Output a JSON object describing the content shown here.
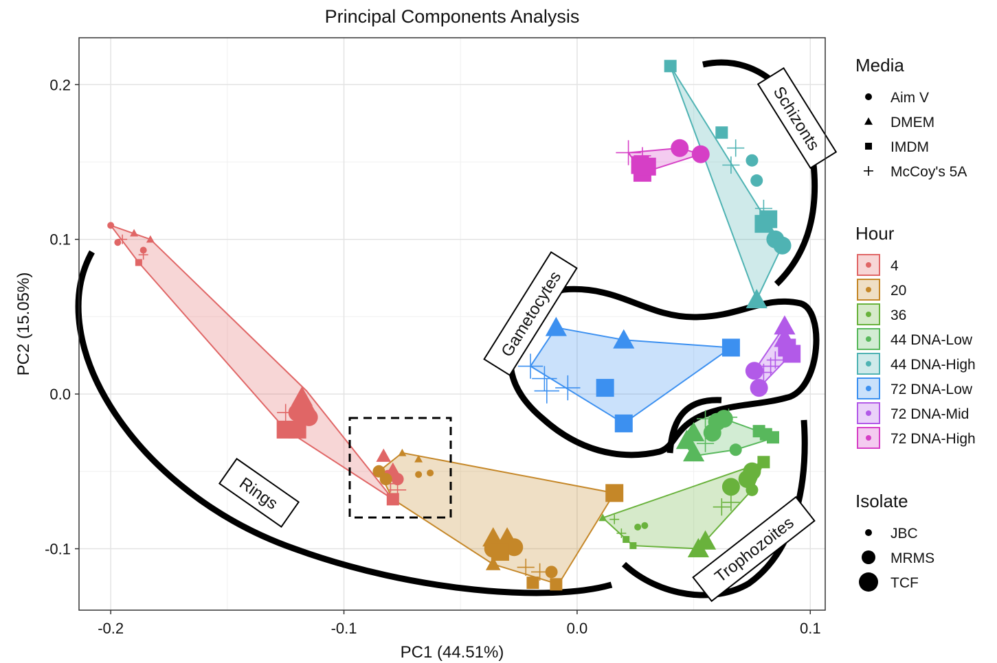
{
  "chart_data": {
    "type": "scatter",
    "title": "Principal Components Analysis",
    "xlabel": "PC1 (44.51%)",
    "ylabel": "PC2 (15.05%)",
    "xlim": [
      -0.2136,
      0.1064
    ],
    "ylim": [
      -0.1397,
      0.2303
    ],
    "x_ticks": [
      -0.2,
      -0.1,
      0.0,
      0.1
    ],
    "x_tick_labels": [
      "-0.2",
      "-0.1",
      "0.0",
      "0.1"
    ],
    "y_ticks": [
      -0.1,
      0.0,
      0.1,
      0.2
    ],
    "y_tick_labels": [
      "-0.1",
      "0.0",
      "0.1",
      "0.2"
    ],
    "grid": true,
    "legend_position": "right",
    "media_legend": {
      "title": "Media",
      "items": [
        {
          "label": "Aim V",
          "shape": "circle"
        },
        {
          "label": "DMEM",
          "shape": "triangle"
        },
        {
          "label": "IMDM",
          "shape": "square"
        },
        {
          "label": "McCoy's 5A",
          "shape": "plus"
        }
      ]
    },
    "hour_legend": {
      "title": "Hour",
      "items": [
        {
          "label": "4",
          "color": "#e06666"
        },
        {
          "label": "20",
          "color": "#c58728"
        },
        {
          "label": "36",
          "color": "#69b23c"
        },
        {
          "label": "44 DNA-Low",
          "color": "#58b85c"
        },
        {
          "label": "44 DNA-High",
          "color": "#4fb3b3"
        },
        {
          "label": "72 DNA-Low",
          "color": "#3c90f0"
        },
        {
          "label": "72 DNA-Mid",
          "color": "#b25ae8"
        },
        {
          "label": "72 DNA-High",
          "color": "#d63fc6"
        }
      ]
    },
    "isolate_legend": {
      "title": "Isolate",
      "items": [
        {
          "label": "JBC",
          "size": "small"
        },
        {
          "label": "MRMS",
          "size": "medium"
        },
        {
          "label": "TCF",
          "size": "large"
        }
      ]
    },
    "annotations": [
      "Schizonts",
      "Gametocytes",
      "Rings",
      "Trophozoites"
    ],
    "series": [
      {
        "color": "#e06666",
        "hull": [
          [
            -0.2,
            0.109
          ],
          [
            -0.183,
            0.1
          ],
          [
            -0.116,
            0.002
          ],
          [
            -0.079,
            -0.068
          ],
          [
            -0.125,
            -0.023
          ],
          [
            -0.188,
            0.085
          ]
        ],
        "points": [
          {
            "x": -0.2,
            "y": 0.109,
            "shape": "circle",
            "size": "small"
          },
          {
            "x": -0.19,
            "y": 0.104,
            "shape": "triangle",
            "size": "small"
          },
          {
            "x": -0.183,
            "y": 0.1,
            "shape": "triangle",
            "size": "small"
          },
          {
            "x": -0.197,
            "y": 0.098,
            "shape": "circle",
            "size": "small"
          },
          {
            "x": -0.195,
            "y": 0.1,
            "shape": "plus",
            "size": "small"
          },
          {
            "x": -0.186,
            "y": 0.093,
            "shape": "circle",
            "size": "small"
          },
          {
            "x": -0.188,
            "y": 0.085,
            "shape": "square",
            "size": "small"
          },
          {
            "x": -0.186,
            "y": 0.09,
            "shape": "plus",
            "size": "small"
          },
          {
            "x": -0.118,
            "y": -0.002,
            "shape": "triangle",
            "size": "large"
          },
          {
            "x": -0.116,
            "y": -0.008,
            "shape": "triangle",
            "size": "large"
          },
          {
            "x": -0.12,
            "y": -0.012,
            "shape": "circle",
            "size": "large"
          },
          {
            "x": -0.115,
            "y": -0.015,
            "shape": "circle",
            "size": "large"
          },
          {
            "x": -0.125,
            "y": -0.023,
            "shape": "square",
            "size": "large"
          },
          {
            "x": -0.12,
            "y": -0.023,
            "shape": "square",
            "size": "large"
          },
          {
            "x": -0.125,
            "y": -0.012,
            "shape": "plus",
            "size": "medium"
          },
          {
            "x": -0.121,
            "y": -0.018,
            "shape": "plus",
            "size": "medium"
          },
          {
            "x": -0.083,
            "y": -0.04,
            "shape": "triangle",
            "size": "medium"
          },
          {
            "x": -0.079,
            "y": -0.049,
            "shape": "triangle",
            "size": "medium"
          },
          {
            "x": -0.081,
            "y": -0.053,
            "shape": "circle",
            "size": "medium"
          },
          {
            "x": -0.077,
            "y": -0.055,
            "shape": "circle",
            "size": "medium"
          },
          {
            "x": -0.079,
            "y": -0.068,
            "shape": "square",
            "size": "medium"
          },
          {
            "x": -0.077,
            "y": -0.062,
            "shape": "plus",
            "size": "medium"
          },
          {
            "x": -0.08,
            "y": -0.058,
            "shape": "plus",
            "size": "medium"
          }
        ]
      },
      {
        "color": "#c58728",
        "hull": [
          [
            -0.085,
            -0.05
          ],
          [
            -0.075,
            -0.038
          ],
          [
            0.016,
            -0.064
          ],
          [
            -0.008,
            -0.123
          ],
          [
            -0.036,
            -0.11
          ],
          [
            -0.079,
            -0.068
          ]
        ],
        "points": [
          {
            "x": -0.085,
            "y": -0.05,
            "shape": "circle",
            "size": "medium"
          },
          {
            "x": -0.075,
            "y": -0.038,
            "shape": "triangle",
            "size": "small"
          },
          {
            "x": -0.068,
            "y": -0.042,
            "shape": "triangle",
            "size": "small"
          },
          {
            "x": -0.068,
            "y": -0.052,
            "shape": "circle",
            "size": "small"
          },
          {
            "x": -0.063,
            "y": -0.051,
            "shape": "circle",
            "size": "small"
          },
          {
            "x": -0.082,
            "y": -0.055,
            "shape": "circle",
            "size": "medium"
          },
          {
            "x": 0.016,
            "y": -0.064,
            "shape": "square",
            "size": "large"
          },
          {
            "x": -0.036,
            "y": -0.093,
            "shape": "triangle",
            "size": "large"
          },
          {
            "x": -0.03,
            "y": -0.093,
            "shape": "triangle",
            "size": "large"
          },
          {
            "x": -0.036,
            "y": -0.1,
            "shape": "circle",
            "size": "large"
          },
          {
            "x": -0.027,
            "y": -0.099,
            "shape": "circle",
            "size": "large"
          },
          {
            "x": -0.033,
            "y": -0.102,
            "shape": "square",
            "size": "large"
          },
          {
            "x": -0.036,
            "y": -0.11,
            "shape": "triangle",
            "size": "medium"
          },
          {
            "x": -0.016,
            "y": -0.115,
            "shape": "plus",
            "size": "medium"
          },
          {
            "x": -0.011,
            "y": -0.115,
            "shape": "circle",
            "size": "medium"
          },
          {
            "x": -0.019,
            "y": -0.122,
            "shape": "square",
            "size": "medium"
          },
          {
            "x": -0.009,
            "y": -0.123,
            "shape": "square",
            "size": "medium"
          },
          {
            "x": -0.022,
            "y": -0.112,
            "shape": "plus",
            "size": "medium"
          }
        ]
      },
      {
        "color": "#69b23c",
        "hull": [
          [
            0.011,
            -0.08
          ],
          [
            0.08,
            -0.044
          ],
          [
            0.075,
            -0.062
          ],
          [
            0.052,
            -0.1
          ],
          [
            0.024,
            -0.098
          ]
        ],
        "points": [
          {
            "x": 0.011,
            "y": -0.08,
            "shape": "triangle",
            "size": "small"
          },
          {
            "x": 0.016,
            "y": -0.081,
            "shape": "plus",
            "size": "small"
          },
          {
            "x": 0.019,
            "y": -0.09,
            "shape": "plus",
            "size": "small"
          },
          {
            "x": 0.024,
            "y": -0.098,
            "shape": "square",
            "size": "small"
          },
          {
            "x": 0.021,
            "y": -0.094,
            "shape": "square",
            "size": "small"
          },
          {
            "x": 0.026,
            "y": -0.086,
            "shape": "circle",
            "size": "small"
          },
          {
            "x": 0.029,
            "y": -0.085,
            "shape": "circle",
            "size": "small"
          },
          {
            "x": 0.052,
            "y": -0.1,
            "shape": "triangle",
            "size": "large"
          },
          {
            "x": 0.055,
            "y": -0.095,
            "shape": "triangle",
            "size": "large"
          },
          {
            "x": 0.075,
            "y": -0.05,
            "shape": "circle",
            "size": "large"
          },
          {
            "x": 0.08,
            "y": -0.044,
            "shape": "square",
            "size": "medium"
          },
          {
            "x": 0.073,
            "y": -0.055,
            "shape": "circle",
            "size": "large"
          },
          {
            "x": 0.066,
            "y": -0.06,
            "shape": "circle",
            "size": "large"
          },
          {
            "x": 0.075,
            "y": -0.062,
            "shape": "circle",
            "size": "medium"
          },
          {
            "x": 0.062,
            "y": -0.073,
            "shape": "plus",
            "size": "medium"
          },
          {
            "x": 0.066,
            "y": -0.07,
            "shape": "plus",
            "size": "medium"
          }
        ]
      },
      {
        "color": "#58b85c",
        "hull": [
          [
            0.052,
            -0.014
          ],
          [
            0.063,
            -0.016
          ],
          [
            0.085,
            -0.028
          ],
          [
            0.068,
            -0.036
          ],
          [
            0.05,
            -0.04
          ],
          [
            0.045,
            -0.03
          ]
        ],
        "points": [
          {
            "x": 0.06,
            "y": -0.018,
            "shape": "circle",
            "size": "large"
          },
          {
            "x": 0.063,
            "y": -0.016,
            "shape": "circle",
            "size": "large"
          },
          {
            "x": 0.055,
            "y": -0.016,
            "shape": "plus",
            "size": "medium"
          },
          {
            "x": 0.065,
            "y": -0.015,
            "shape": "plus",
            "size": "medium"
          },
          {
            "x": 0.05,
            "y": -0.025,
            "shape": "triangle",
            "size": "large"
          },
          {
            "x": 0.047,
            "y": -0.03,
            "shape": "triangle",
            "size": "large"
          },
          {
            "x": 0.05,
            "y": -0.038,
            "shape": "triangle",
            "size": "large"
          },
          {
            "x": 0.058,
            "y": -0.025,
            "shape": "circle",
            "size": "large"
          },
          {
            "x": 0.068,
            "y": -0.036,
            "shape": "circle",
            "size": "medium"
          },
          {
            "x": 0.084,
            "y": -0.028,
            "shape": "square",
            "size": "medium"
          },
          {
            "x": 0.078,
            "y": -0.024,
            "shape": "square",
            "size": "medium"
          },
          {
            "x": 0.081,
            "y": -0.026,
            "shape": "square",
            "size": "medium"
          },
          {
            "x": 0.055,
            "y": -0.032,
            "shape": "plus",
            "size": "medium"
          }
        ]
      },
      {
        "color": "#4fb3b3",
        "hull": [
          [
            0.04,
            0.212
          ],
          [
            0.088,
            0.096
          ],
          [
            0.077,
            0.061
          ]
        ],
        "points": [
          {
            "x": 0.04,
            "y": 0.212,
            "shape": "square",
            "size": "medium"
          },
          {
            "x": 0.062,
            "y": 0.169,
            "shape": "square",
            "size": "medium"
          },
          {
            "x": 0.068,
            "y": 0.159,
            "shape": "plus",
            "size": "medium"
          },
          {
            "x": 0.066,
            "y": 0.148,
            "shape": "plus",
            "size": "medium"
          },
          {
            "x": 0.075,
            "y": 0.151,
            "shape": "circle",
            "size": "medium"
          },
          {
            "x": 0.077,
            "y": 0.138,
            "shape": "circle",
            "size": "medium"
          },
          {
            "x": 0.08,
            "y": 0.12,
            "shape": "plus",
            "size": "medium"
          },
          {
            "x": 0.082,
            "y": 0.113,
            "shape": "square",
            "size": "large"
          },
          {
            "x": 0.08,
            "y": 0.11,
            "shape": "square",
            "size": "large"
          },
          {
            "x": 0.085,
            "y": 0.1,
            "shape": "circle",
            "size": "large"
          },
          {
            "x": 0.088,
            "y": 0.096,
            "shape": "circle",
            "size": "large"
          },
          {
            "x": 0.077,
            "y": 0.061,
            "shape": "triangle",
            "size": "large"
          }
        ]
      },
      {
        "color": "#3c90f0",
        "hull": [
          [
            -0.009,
            0.043
          ],
          [
            0.02,
            0.035
          ],
          [
            0.066,
            0.03
          ],
          [
            0.02,
            -0.019
          ],
          [
            -0.02,
            0.018
          ]
        ],
        "points": [
          {
            "x": -0.009,
            "y": 0.043,
            "shape": "triangle",
            "size": "large"
          },
          {
            "x": 0.02,
            "y": 0.035,
            "shape": "triangle",
            "size": "large"
          },
          {
            "x": 0.066,
            "y": 0.03,
            "shape": "square",
            "size": "large"
          },
          {
            "x": -0.02,
            "y": 0.018,
            "shape": "plus",
            "size": "large"
          },
          {
            "x": -0.014,
            "y": 0.01,
            "shape": "plus",
            "size": "large"
          },
          {
            "x": -0.004,
            "y": 0.004,
            "shape": "plus",
            "size": "large"
          },
          {
            "x": -0.013,
            "y": 0.002,
            "shape": "plus",
            "size": "large"
          },
          {
            "x": 0.012,
            "y": 0.004,
            "shape": "square",
            "size": "large"
          },
          {
            "x": 0.02,
            "y": -0.019,
            "shape": "square",
            "size": "large"
          }
        ]
      },
      {
        "color": "#b25ae8",
        "hull": [
          [
            0.089,
            0.044
          ],
          [
            0.092,
            0.026
          ],
          [
            0.078,
            0.004
          ],
          [
            0.076,
            0.015
          ]
        ],
        "points": [
          {
            "x": 0.089,
            "y": 0.044,
            "shape": "triangle",
            "size": "large"
          },
          {
            "x": 0.089,
            "y": 0.036,
            "shape": "triangle",
            "size": "large"
          },
          {
            "x": 0.09,
            "y": 0.03,
            "shape": "square",
            "size": "large"
          },
          {
            "x": 0.092,
            "y": 0.026,
            "shape": "square",
            "size": "large"
          },
          {
            "x": 0.085,
            "y": 0.022,
            "shape": "plus",
            "size": "medium"
          },
          {
            "x": 0.083,
            "y": 0.018,
            "shape": "plus",
            "size": "medium"
          },
          {
            "x": 0.08,
            "y": 0.014,
            "shape": "plus",
            "size": "medium"
          },
          {
            "x": 0.076,
            "y": 0.015,
            "shape": "circle",
            "size": "large"
          },
          {
            "x": 0.078,
            "y": 0.004,
            "shape": "circle",
            "size": "large"
          }
        ]
      },
      {
        "color": "#d63fc6",
        "hull": [
          [
            0.022,
            0.156
          ],
          [
            0.044,
            0.159
          ],
          [
            0.053,
            0.155
          ],
          [
            0.028,
            0.143
          ]
        ],
        "points": [
          {
            "x": 0.022,
            "y": 0.156,
            "shape": "plus",
            "size": "large"
          },
          {
            "x": 0.028,
            "y": 0.154,
            "shape": "plus",
            "size": "medium"
          },
          {
            "x": 0.044,
            "y": 0.159,
            "shape": "circle",
            "size": "large"
          },
          {
            "x": 0.053,
            "y": 0.155,
            "shape": "circle",
            "size": "large"
          },
          {
            "x": 0.027,
            "y": 0.148,
            "shape": "square",
            "size": "large"
          },
          {
            "x": 0.028,
            "y": 0.143,
            "shape": "square",
            "size": "large"
          },
          {
            "x": 0.03,
            "y": 0.147,
            "shape": "square",
            "size": "large"
          }
        ]
      }
    ]
  }
}
